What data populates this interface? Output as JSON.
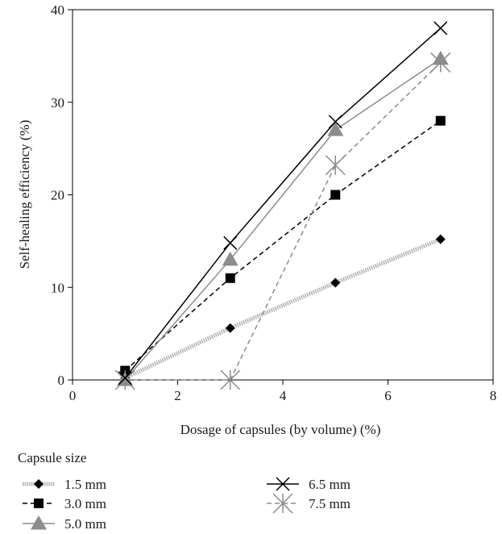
{
  "chart_data": {
    "type": "line",
    "title": "",
    "xlabel": "Dosage of capsules (by volume) (%)",
    "ylabel": "Self-healing efficiency (%)",
    "xlim": [
      0,
      8
    ],
    "ylim": [
      0,
      40
    ],
    "xticks": [
      0,
      2,
      4,
      6,
      8
    ],
    "yticks": [
      0,
      10,
      20,
      30,
      40
    ],
    "grid": false,
    "legend_title": "Capsule size",
    "legend_position": "below",
    "series": [
      {
        "name": "1.5 mm",
        "marker": "diamond",
        "line": "dotted-gray-band",
        "color": "#000000",
        "line_color": "#b0b0b0",
        "x": [
          1,
          3,
          5,
          7
        ],
        "y": [
          0.2,
          5.6,
          10.5,
          15.2
        ]
      },
      {
        "name": "3.0 mm",
        "marker": "square",
        "line": "dashed",
        "color": "#000000",
        "line_color": "#000000",
        "x": [
          1,
          3,
          5,
          7
        ],
        "y": [
          1.0,
          11.0,
          20.0,
          28.0
        ]
      },
      {
        "name": "5.0 mm",
        "marker": "triangle",
        "line": "solid",
        "color": "#8c8c8c",
        "line_color": "#8c8c8c",
        "x": [
          1,
          3,
          5,
          7
        ],
        "y": [
          0.0,
          13.0,
          27.0,
          34.7
        ]
      },
      {
        "name": "6.5 mm",
        "marker": "x",
        "line": "solid",
        "color": "#000000",
        "line_color": "#000000",
        "x": [
          1,
          3,
          5,
          7
        ],
        "y": [
          0.2,
          14.8,
          27.9,
          38.0
        ]
      },
      {
        "name": "7.5 mm",
        "marker": "asterisk",
        "line": "dashed",
        "color": "#8c8c8c",
        "line_color": "#8c8c8c",
        "x": [
          1,
          3,
          5,
          7
        ],
        "y": [
          0.0,
          0.0,
          23.2,
          34.3
        ]
      }
    ]
  }
}
